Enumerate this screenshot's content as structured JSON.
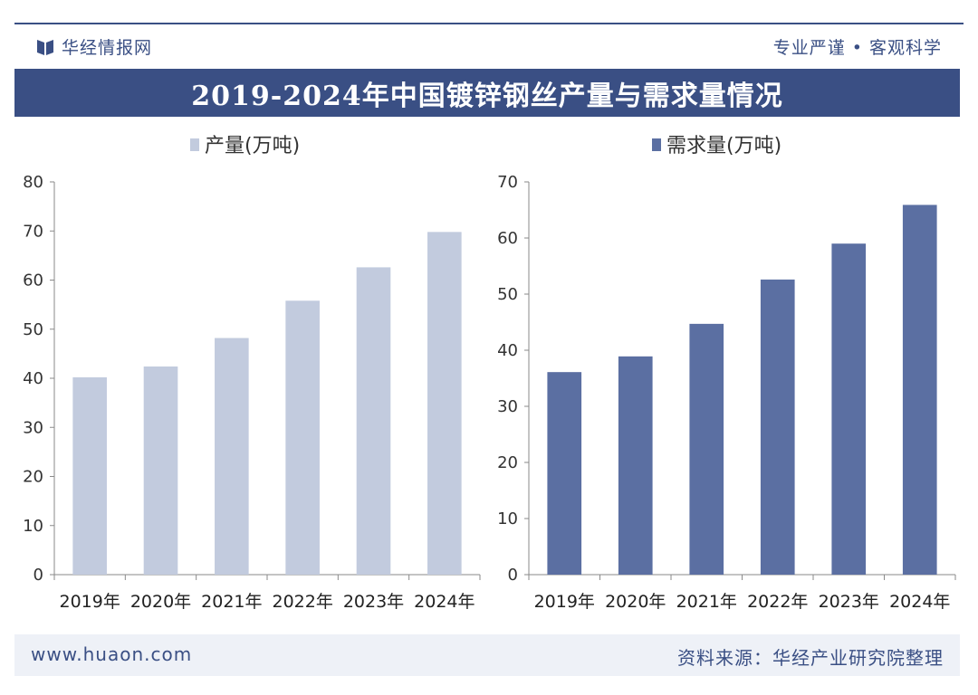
{
  "header": {
    "logo_text": "华经情报网",
    "slogan": "专业严谨 • 客观科学"
  },
  "title": "2019-2024年中国镀锌钢丝产量与需求量情况",
  "footer": {
    "url": "www.huaon.com",
    "source": "资料来源：华经产业研究院整理"
  },
  "colors": {
    "brand": "#3a4f84",
    "production_bar": "#c2cbde",
    "demand_bar": "#5b6fa2"
  },
  "chart_data": [
    {
      "type": "bar",
      "legend": "产量(万吨)",
      "categories": [
        "2019年",
        "2020年",
        "2021年",
        "2022年",
        "2023年",
        "2024年"
      ],
      "values": [
        40.2,
        42.4,
        48.2,
        55.8,
        62.6,
        69.8
      ],
      "ylim": [
        0,
        80
      ],
      "yticks": [
        0,
        10,
        20,
        30,
        40,
        50,
        60,
        70,
        80
      ]
    },
    {
      "type": "bar",
      "legend": "需求量(万吨)",
      "categories": [
        "2019年",
        "2020年",
        "2021年",
        "2022年",
        "2023年",
        "2024年"
      ],
      "values": [
        36.1,
        38.9,
        44.7,
        52.6,
        59.0,
        65.9
      ],
      "ylim": [
        0,
        70
      ],
      "yticks": [
        0,
        10,
        20,
        30,
        40,
        50,
        60,
        70
      ]
    }
  ]
}
